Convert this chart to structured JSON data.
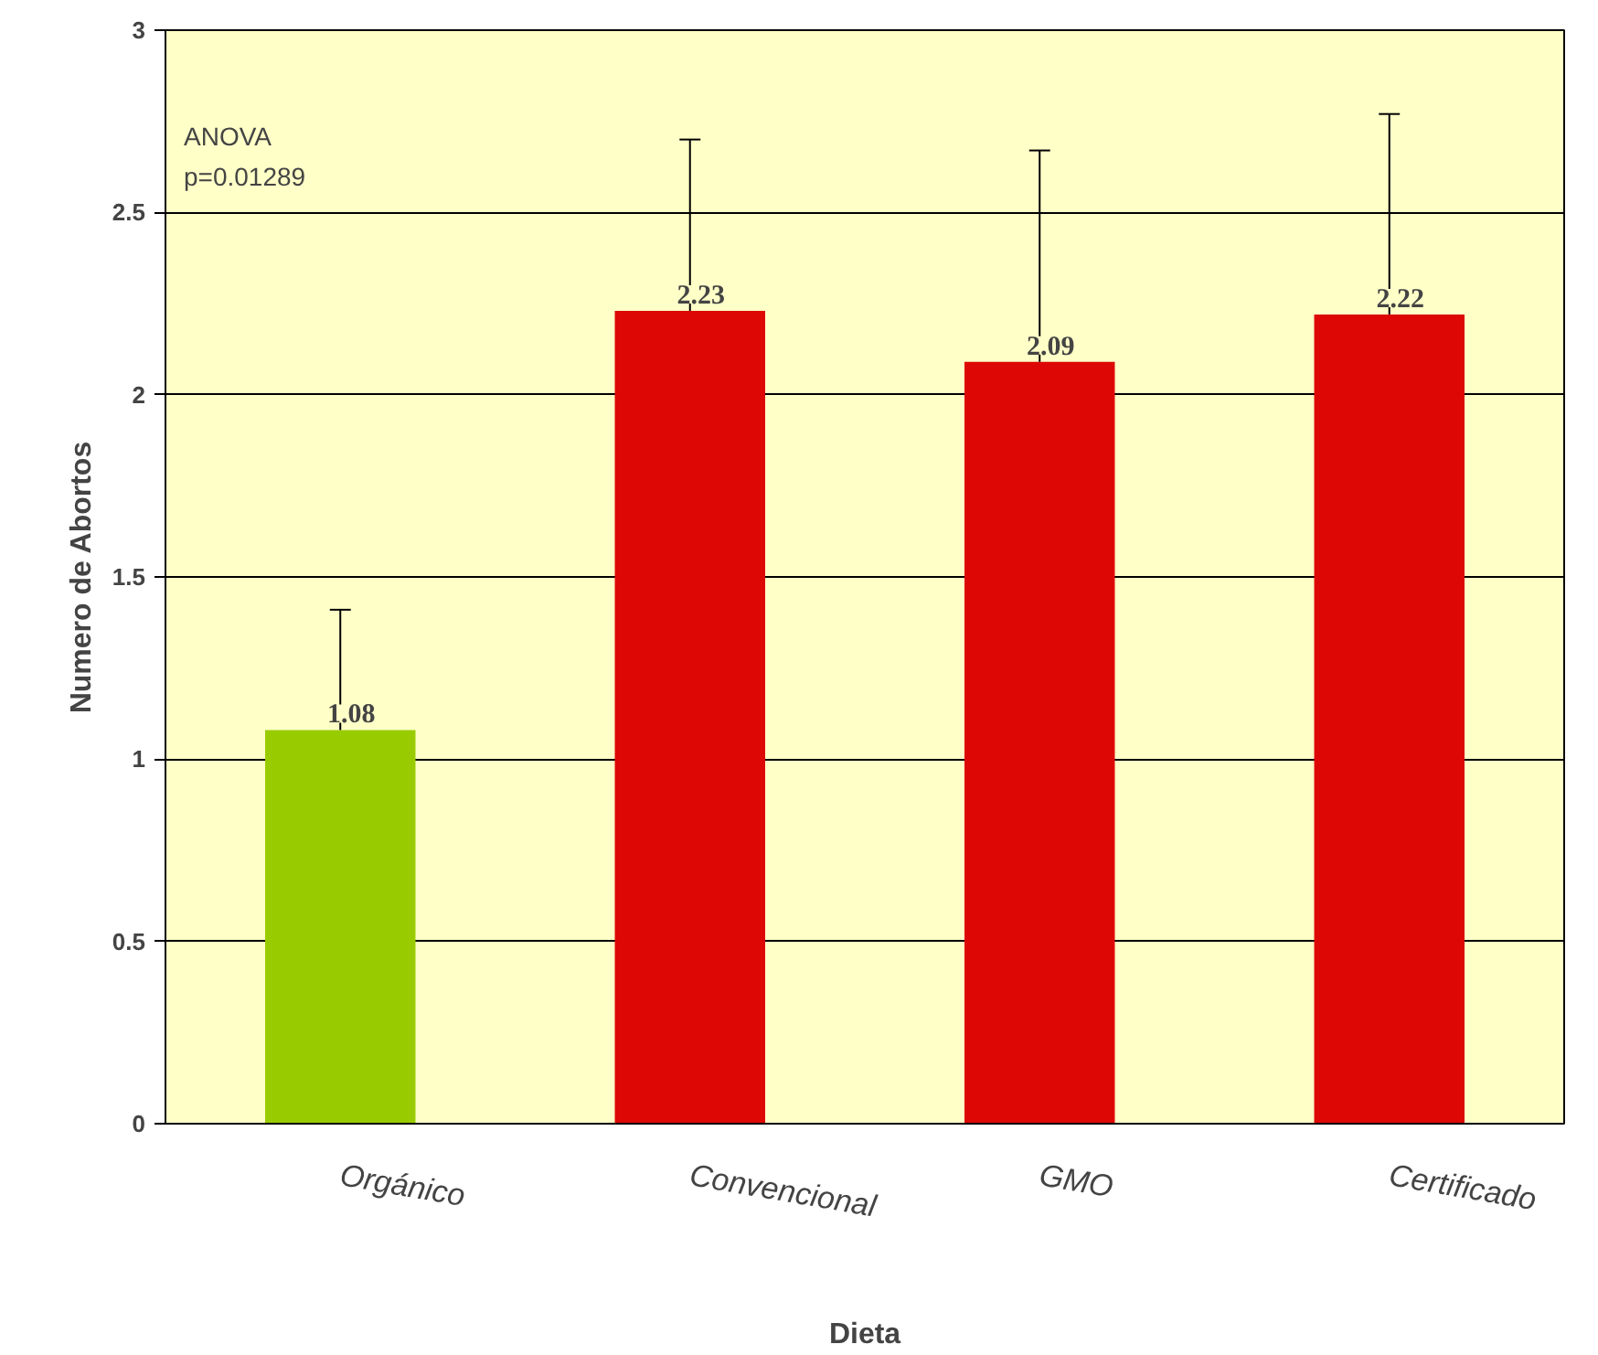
{
  "chart_data": {
    "type": "bar",
    "xlabel": "Dieta",
    "ylabel": "Numero de Abortos",
    "categories": [
      "Orgánico",
      "Convencional",
      "GMO",
      "Certificado"
    ],
    "values": [
      1.08,
      2.23,
      2.09,
      2.22
    ],
    "colors": [
      "#99cc00",
      "#dd0806",
      "#dd0806",
      "#dd0806"
    ],
    "errors": [
      [
        1.08,
        1.41
      ],
      [
        2.23,
        2.7
      ],
      [
        2.09,
        2.67
      ],
      [
        2.22,
        2.77
      ]
    ],
    "data_labels": true,
    "ylim": [
      0,
      3
    ],
    "yticks": [
      0,
      0.5,
      1,
      1.5,
      2,
      2.5,
      3
    ],
    "grid": "y",
    "annotations": [
      "ANOVA",
      "p=0.01289"
    ]
  }
}
